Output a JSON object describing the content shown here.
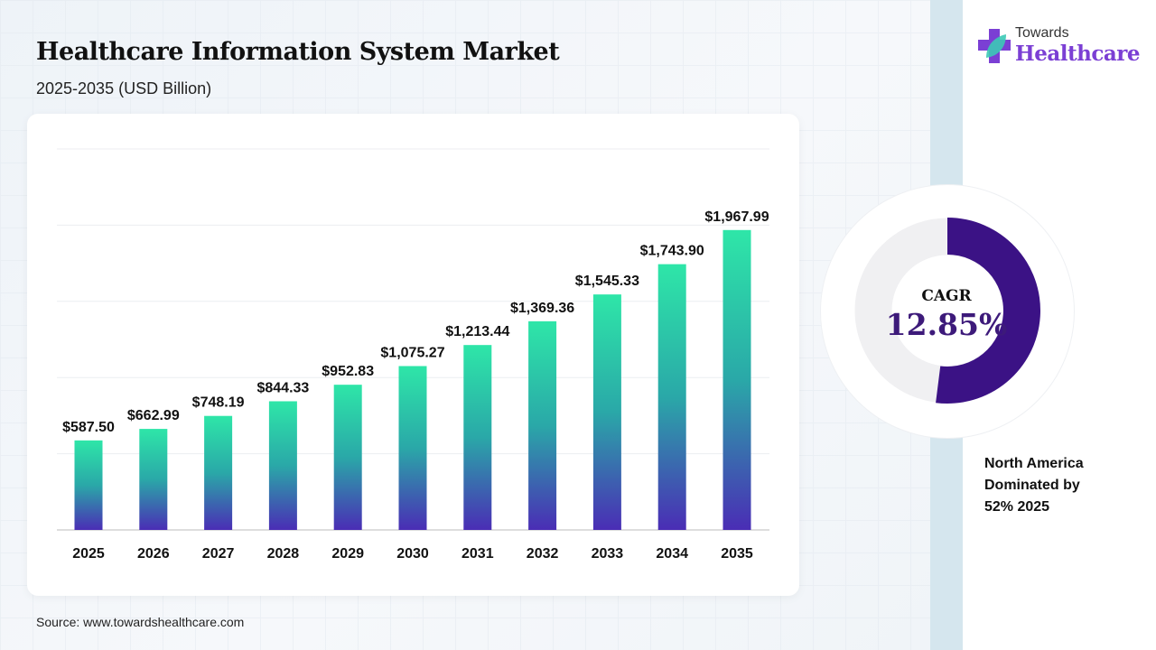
{
  "header": {
    "title": "Healthcare Information System Market",
    "subtitle": "2025-2035 (USD Billion)"
  },
  "brand": {
    "line1": "Towards",
    "line2": "Healthcare"
  },
  "cagr": {
    "label": "CAGR",
    "value": "12.85%",
    "share": 0.52
  },
  "note": {
    "lines": [
      "North America",
      "Dominated by",
      "52% 2025"
    ]
  },
  "source": "Source: www.towardshealthcare.com",
  "colors": {
    "bar_top": "#2ee6a8",
    "bar_bottom": "#4a2db5",
    "donut": "#3b1285",
    "donut_bg": "#f0f0f2"
  },
  "chart_data": {
    "type": "bar",
    "title": "Healthcare Information System Market",
    "xlabel": "",
    "ylabel": "USD Billion",
    "ylim": [
      0,
      2500
    ],
    "grid": true,
    "categories": [
      "2025",
      "2026",
      "2027",
      "2028",
      "2029",
      "2030",
      "2031",
      "2032",
      "2033",
      "2034",
      "2035"
    ],
    "values": [
      587.5,
      662.99,
      748.19,
      844.33,
      952.83,
      1075.27,
      1213.44,
      1369.36,
      1545.33,
      1743.9,
      1967.99
    ],
    "labels": [
      "$587.50",
      "$662.99",
      "$748.19",
      "$844.33",
      "$952.83",
      "$1,075.27",
      "$1,213.44",
      "$1,369.36",
      "$1,545.33",
      "$1,743.90",
      "$1,967.99"
    ]
  }
}
